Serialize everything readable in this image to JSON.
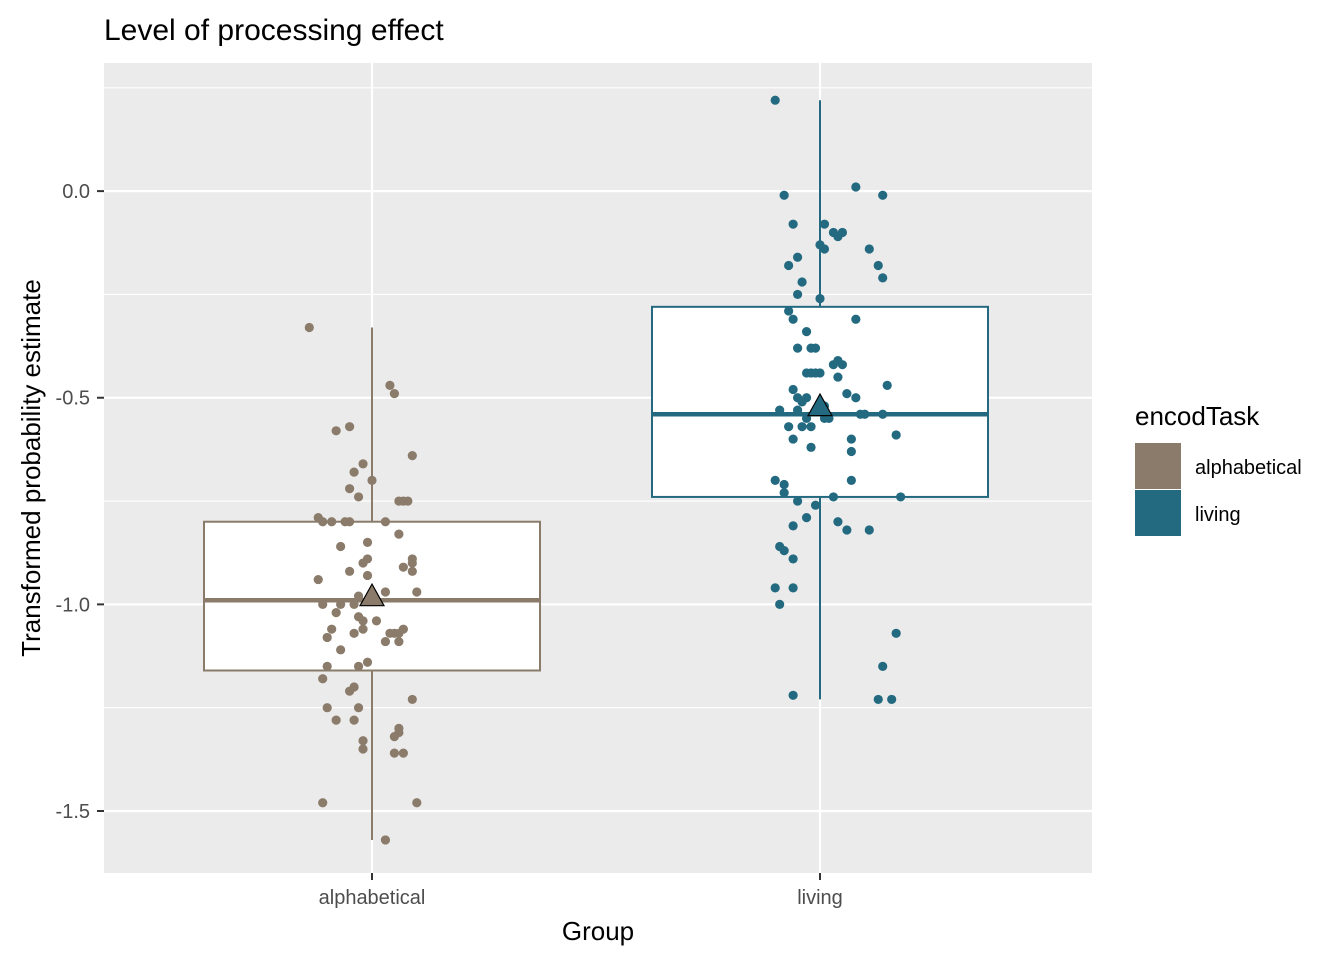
{
  "chart_data": {
    "type": "boxplot",
    "title": "Level of processing effect",
    "xlabel": "Group",
    "ylabel": "Transformed probability estimate",
    "categories": [
      "alphabetical",
      "living"
    ],
    "ylim": [
      -1.65,
      0.31
    ],
    "yticks": [
      0.0,
      -0.5,
      -1.0,
      -1.5
    ],
    "ytick_labels": [
      "0.0",
      "-0.5",
      "-1.0",
      "-1.5"
    ],
    "grid": true,
    "legend": {
      "title": "encodTask",
      "placement": "right",
      "entries": [
        {
          "label": "alphabetical",
          "color": "#8a7b6a"
        },
        {
          "label": "living",
          "color": "#236a80"
        }
      ]
    },
    "colors": {
      "alphabetical": "#8a7b6a",
      "living": "#236a80"
    },
    "series": [
      {
        "name": "alphabetical",
        "box": {
          "whisker_low": -1.57,
          "q1": -1.16,
          "median": -0.99,
          "q3": -0.8,
          "whisker_high": -0.33
        },
        "mean": -0.98,
        "points": [
          [
            -0.14,
            -0.33
          ],
          [
            0.04,
            -0.47
          ],
          [
            0.05,
            -0.49
          ],
          [
            -0.08,
            -0.58
          ],
          [
            -0.05,
            -0.57
          ],
          [
            0.09,
            -0.64
          ],
          [
            -0.02,
            -0.66
          ],
          [
            -0.04,
            -0.68
          ],
          [
            0.0,
            -0.7
          ],
          [
            -0.05,
            -0.72
          ],
          [
            -0.03,
            -0.74
          ],
          [
            0.06,
            -0.75
          ],
          [
            0.07,
            -0.75
          ],
          [
            0.08,
            -0.75
          ],
          [
            -0.12,
            -0.79
          ],
          [
            -0.11,
            -0.8
          ],
          [
            -0.09,
            -0.8
          ],
          [
            -0.06,
            -0.8
          ],
          [
            -0.05,
            -0.8
          ],
          [
            0.03,
            -0.8
          ],
          [
            0.06,
            -0.83
          ],
          [
            -0.07,
            -0.86
          ],
          [
            -0.01,
            -0.85
          ],
          [
            -0.01,
            -0.89
          ],
          [
            -0.02,
            -0.9
          ],
          [
            0.09,
            -0.89
          ],
          [
            0.09,
            -0.9
          ],
          [
            0.07,
            -0.91
          ],
          [
            -0.05,
            -0.92
          ],
          [
            0.09,
            -0.92
          ],
          [
            -0.12,
            -0.94
          ],
          [
            0.03,
            -0.97
          ],
          [
            0.1,
            -0.97
          ],
          [
            -0.03,
            -0.98
          ],
          [
            -0.01,
            -0.93
          ],
          [
            -0.04,
            -1.0
          ],
          [
            -0.11,
            -1.0
          ],
          [
            -0.07,
            -1.0
          ],
          [
            -0.08,
            -1.02
          ],
          [
            -0.03,
            -1.03
          ],
          [
            -0.02,
            -1.04
          ],
          [
            -0.02,
            -1.06
          ],
          [
            0.01,
            -1.04
          ],
          [
            -0.09,
            -1.06
          ],
          [
            -0.04,
            -1.07
          ],
          [
            0.04,
            -1.07
          ],
          [
            0.05,
            -1.07
          ],
          [
            0.06,
            -1.07
          ],
          [
            0.07,
            -1.06
          ],
          [
            -0.1,
            -1.08
          ],
          [
            0.03,
            -1.09
          ],
          [
            0.06,
            -1.09
          ],
          [
            -0.07,
            -1.11
          ],
          [
            -0.03,
            -1.15
          ],
          [
            -0.01,
            -1.14
          ],
          [
            -0.1,
            -1.15
          ],
          [
            -0.11,
            -1.18
          ],
          [
            -0.05,
            -1.21
          ],
          [
            -0.04,
            -1.2
          ],
          [
            -0.1,
            -1.25
          ],
          [
            -0.03,
            -1.25
          ],
          [
            0.09,
            -1.23
          ],
          [
            -0.08,
            -1.28
          ],
          [
            -0.04,
            -1.28
          ],
          [
            0.06,
            -1.3
          ],
          [
            0.06,
            -1.31
          ],
          [
            0.05,
            -1.32
          ],
          [
            -0.02,
            -1.33
          ],
          [
            -0.02,
            -1.35
          ],
          [
            0.07,
            -1.36
          ],
          [
            0.05,
            -1.36
          ],
          [
            -0.11,
            -1.48
          ],
          [
            0.1,
            -1.48
          ],
          [
            0.03,
            -1.57
          ]
        ]
      },
      {
        "name": "living",
        "box": {
          "whisker_low": -1.23,
          "q1": -0.74,
          "median": -0.54,
          "q3": -0.28,
          "whisker_high": 0.22
        },
        "mean": -0.52,
        "points": [
          [
            -0.1,
            0.22
          ],
          [
            -0.08,
            -0.01
          ],
          [
            0.08,
            0.01
          ],
          [
            0.14,
            -0.01
          ],
          [
            -0.06,
            -0.08
          ],
          [
            0.01,
            -0.08
          ],
          [
            0.03,
            -0.1
          ],
          [
            0.04,
            -0.11
          ],
          [
            0.05,
            -0.1
          ],
          [
            0.0,
            -0.13
          ],
          [
            0.01,
            -0.14
          ],
          [
            0.11,
            -0.14
          ],
          [
            -0.05,
            -0.16
          ],
          [
            0.13,
            -0.18
          ],
          [
            -0.07,
            -0.18
          ],
          [
            -0.04,
            -0.22
          ],
          [
            0.14,
            -0.21
          ],
          [
            -0.05,
            -0.25
          ],
          [
            0.0,
            -0.26
          ],
          [
            -0.07,
            -0.29
          ],
          [
            -0.06,
            -0.31
          ],
          [
            0.08,
            -0.31
          ],
          [
            -0.03,
            -0.34
          ],
          [
            -0.05,
            -0.38
          ],
          [
            -0.02,
            -0.38
          ],
          [
            -0.01,
            -0.38
          ],
          [
            0.03,
            -0.42
          ],
          [
            0.05,
            -0.42
          ],
          [
            0.04,
            -0.41
          ],
          [
            -0.03,
            -0.44
          ],
          [
            -0.02,
            -0.44
          ],
          [
            -0.01,
            -0.44
          ],
          [
            0.0,
            -0.44
          ],
          [
            0.04,
            -0.45
          ],
          [
            -0.06,
            -0.48
          ],
          [
            0.15,
            -0.47
          ],
          [
            -0.05,
            -0.5
          ],
          [
            -0.04,
            -0.51
          ],
          [
            -0.03,
            -0.5
          ],
          [
            0.06,
            -0.49
          ],
          [
            0.08,
            -0.5
          ],
          [
            -0.09,
            -0.53
          ],
          [
            -0.05,
            -0.53
          ],
          [
            -0.03,
            -0.55
          ],
          [
            0.01,
            -0.52
          ],
          [
            0.01,
            -0.55
          ],
          [
            0.02,
            -0.55
          ],
          [
            0.09,
            -0.54
          ],
          [
            0.1,
            -0.54
          ],
          [
            0.14,
            -0.54
          ],
          [
            -0.07,
            -0.57
          ],
          [
            -0.04,
            -0.57
          ],
          [
            -0.02,
            -0.57
          ],
          [
            -0.06,
            -0.6
          ],
          [
            0.07,
            -0.6
          ],
          [
            0.17,
            -0.59
          ],
          [
            -0.02,
            -0.62
          ],
          [
            0.07,
            -0.63
          ],
          [
            -0.1,
            -0.7
          ],
          [
            -0.08,
            -0.71
          ],
          [
            0.07,
            -0.7
          ],
          [
            -0.08,
            -0.73
          ],
          [
            0.03,
            -0.74
          ],
          [
            -0.05,
            -0.75
          ],
          [
            -0.01,
            -0.76
          ],
          [
            0.18,
            -0.74
          ],
          [
            -0.03,
            -0.79
          ],
          [
            0.04,
            -0.8
          ],
          [
            0.06,
            -0.82
          ],
          [
            0.11,
            -0.82
          ],
          [
            -0.06,
            -0.81
          ],
          [
            -0.09,
            -0.86
          ],
          [
            -0.08,
            -0.87
          ],
          [
            -0.06,
            -0.89
          ],
          [
            -0.1,
            -0.96
          ],
          [
            -0.06,
            -0.96
          ],
          [
            -0.09,
            -1.0
          ],
          [
            0.17,
            -1.07
          ],
          [
            0.14,
            -1.15
          ],
          [
            -0.06,
            -1.22
          ],
          [
            0.13,
            -1.23
          ],
          [
            0.16,
            -1.23
          ]
        ]
      }
    ]
  }
}
